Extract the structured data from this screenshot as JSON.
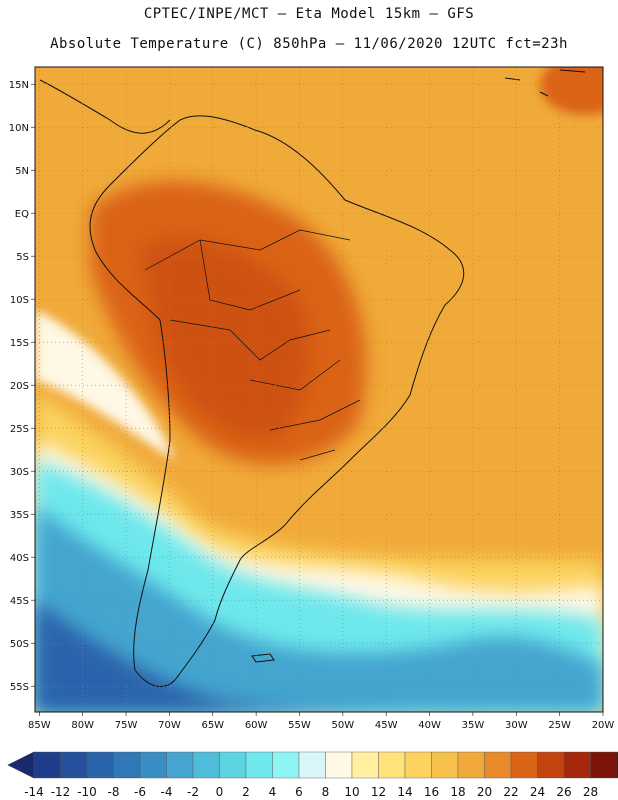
{
  "header": {
    "title_line1": "CPTEC/INPE/MCT –  Eta Model 15km – GFS",
    "title_line2": "Absolute Temperature (C) 850hPa – 11/06/2020 12UTC fct=23h"
  },
  "map": {
    "lat_labels": [
      "15N",
      "10N",
      "5N",
      "EQ",
      "5S",
      "10S",
      "15S",
      "20S",
      "25S",
      "30S",
      "35S",
      "40S",
      "45S",
      "50S",
      "55S"
    ],
    "lat_values": [
      15,
      10,
      5,
      0,
      -5,
      -10,
      -15,
      -20,
      -25,
      -30,
      -35,
      -40,
      -45,
      -50,
      -55
    ],
    "lon_labels": [
      "85W",
      "80W",
      "75W",
      "70W",
      "65W",
      "60W",
      "55W",
      "50W",
      "45W",
      "40W",
      "35W",
      "30W",
      "25W",
      "20W"
    ],
    "lon_values": [
      -85,
      -80,
      -75,
      -70,
      -65,
      -60,
      -55,
      -50,
      -45,
      -40,
      -35,
      -30,
      -25,
      -20
    ],
    "lon_range": [
      -85.5,
      -20
    ],
    "lat_range": [
      -58,
      17
    ]
  },
  "colorbar": {
    "labels": [
      "-14",
      "-12",
      "-10",
      "-8",
      "-6",
      "-4",
      "-2",
      "0",
      "2",
      "4",
      "6",
      "8",
      "10",
      "12",
      "14",
      "16",
      "18",
      "20",
      "22",
      "24",
      "26",
      "28"
    ],
    "colors": [
      "#1f3d8c",
      "#24509c",
      "#2a64ab",
      "#3078b8",
      "#3a8ec4",
      "#45a5cf",
      "#51bcd9",
      "#5ed4e3",
      "#6ee8ec",
      "#8ff4f4",
      "#d8f6f8",
      "#fff8e6",
      "#ffef9e",
      "#ffe27a",
      "#fbd35e",
      "#f5c14a",
      "#f2a93c",
      "#e98a2c",
      "#da6418",
      "#c44410",
      "#a5280c",
      "#7a1508"
    ],
    "left_arrow_color": "#1a2a6e",
    "right_arrow_color": "#5c0a05"
  }
}
